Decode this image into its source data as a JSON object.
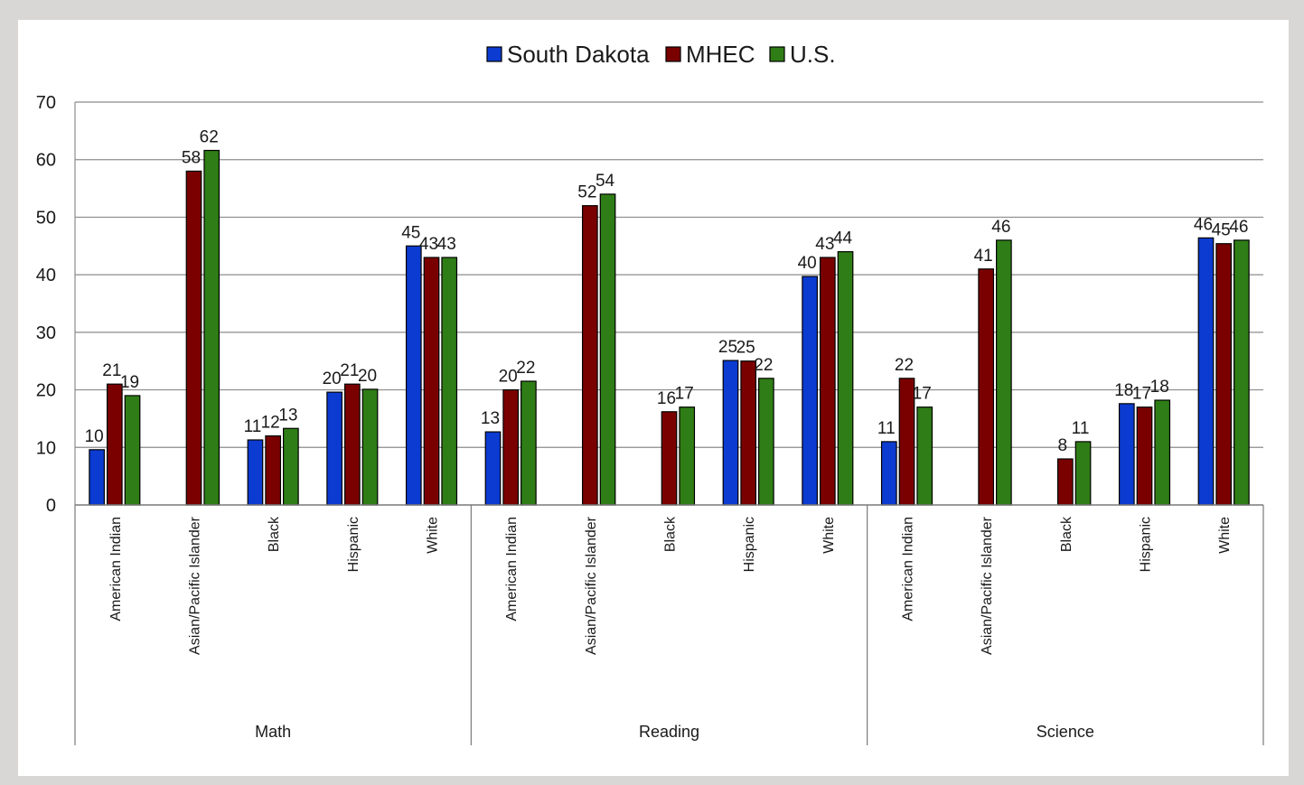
{
  "chart_data": {
    "type": "bar",
    "legend_position": "top-center",
    "grid": true,
    "ylim": [
      0,
      70
    ],
    "yticks": [
      0,
      10,
      20,
      30,
      40,
      50,
      60,
      70
    ],
    "groups": [
      {
        "name": "Math",
        "categories": [
          "American Indian",
          "Asian/Pacific Islander",
          "Black",
          "Hispanic",
          "White"
        ]
      },
      {
        "name": "Reading",
        "categories": [
          "American Indian",
          "Asian/Pacific Islander",
          "Black",
          "Hispanic",
          "White"
        ]
      },
      {
        "name": "Science",
        "categories": [
          "American Indian",
          "Asian/Pacific Islander",
          "Black",
          "Hispanic",
          "White"
        ]
      }
    ],
    "series": [
      {
        "name": "South Dakota",
        "color": "#0b3bd0",
        "values": [
          9.6,
          null,
          11.3,
          19.6,
          45.0,
          12.7,
          null,
          null,
          25.1,
          39.7,
          11.0,
          null,
          null,
          17.6,
          46.4
        ],
        "labels": [
          "10",
          "",
          "11",
          "20",
          "45",
          "13",
          "",
          "",
          "25",
          "40",
          "11",
          "",
          "",
          "18",
          "46"
        ]
      },
      {
        "name": "MHEC",
        "color": "#7a0000",
        "values": [
          21.0,
          58.0,
          12.0,
          21.0,
          43.0,
          20.0,
          52.0,
          16.2,
          25.0,
          43.0,
          22.0,
          41.0,
          8.0,
          17.0,
          45.4
        ],
        "labels": [
          "21",
          "58",
          "12",
          "21",
          "43",
          "20",
          "52",
          "16",
          "25",
          "43",
          "22",
          "41",
          "8",
          "17",
          "45"
        ]
      },
      {
        "name": "U.S.",
        "color": "#2f7d16",
        "values": [
          19.0,
          61.6,
          13.3,
          20.1,
          43.0,
          21.5,
          54.0,
          17.0,
          22.0,
          44.0,
          17.0,
          46.0,
          11.0,
          18.2,
          46.0
        ],
        "labels": [
          "19",
          "62",
          "13",
          "20",
          "43",
          "22",
          "54",
          "17",
          "22",
          "44",
          "17",
          "46",
          "11",
          "18",
          "46"
        ]
      }
    ]
  }
}
